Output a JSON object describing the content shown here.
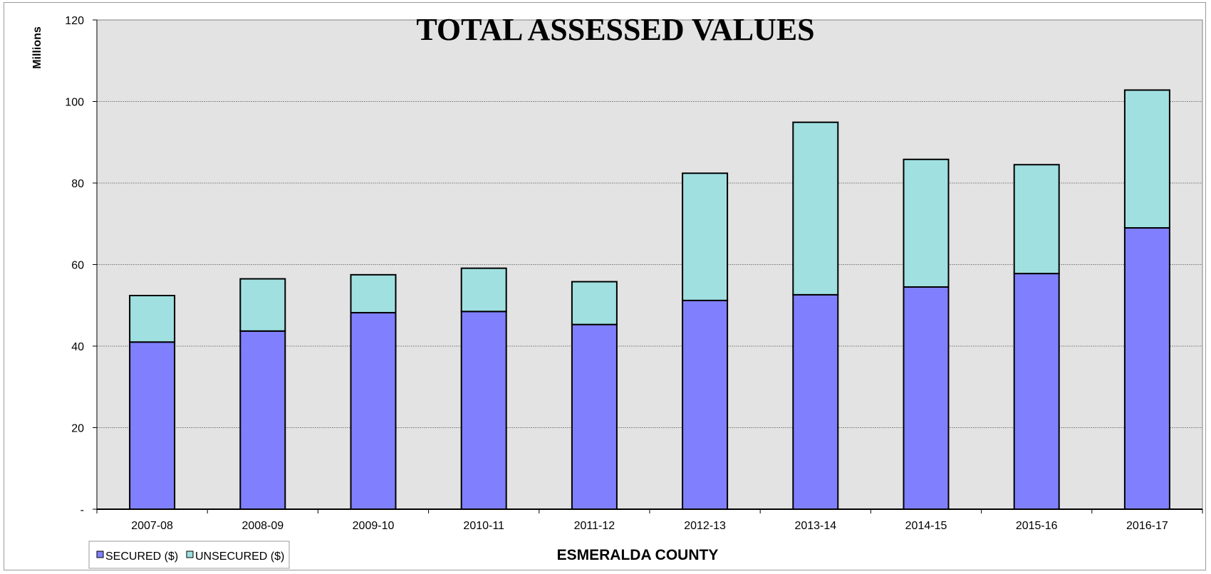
{
  "chart_data": {
    "type": "bar",
    "stacked": true,
    "title": "TOTAL ASSESSED VALUES",
    "xlabel": "ESMERALDA COUNTY",
    "ylabel": "Millions",
    "ylim": [
      0,
      120
    ],
    "yticks": [
      0,
      20,
      40,
      60,
      80,
      100,
      120
    ],
    "ytick_labels": [
      "-",
      "20",
      "40",
      "60",
      "80",
      "100",
      "120"
    ],
    "grid": true,
    "legend_position": "bottom-left",
    "categories": [
      "2007-08",
      "2008-09",
      "2009-10",
      "2010-11",
      "2011-12",
      "2012-13",
      "2013-14",
      "2014-15",
      "2015-16",
      "2016-17"
    ],
    "series": [
      {
        "name": "SECURED ($)",
        "color": "#8080ff",
        "values": [
          41.0,
          43.7,
          48.2,
          48.5,
          45.3,
          51.2,
          52.6,
          54.5,
          57.8,
          69.0
        ]
      },
      {
        "name": "UNSECURED ($)",
        "color": "#a0e0e0",
        "values": [
          11.4,
          12.8,
          9.3,
          10.6,
          10.5,
          31.2,
          42.3,
          31.3,
          26.7,
          33.8
        ]
      }
    ],
    "plot_background": "#e3e3e3"
  }
}
